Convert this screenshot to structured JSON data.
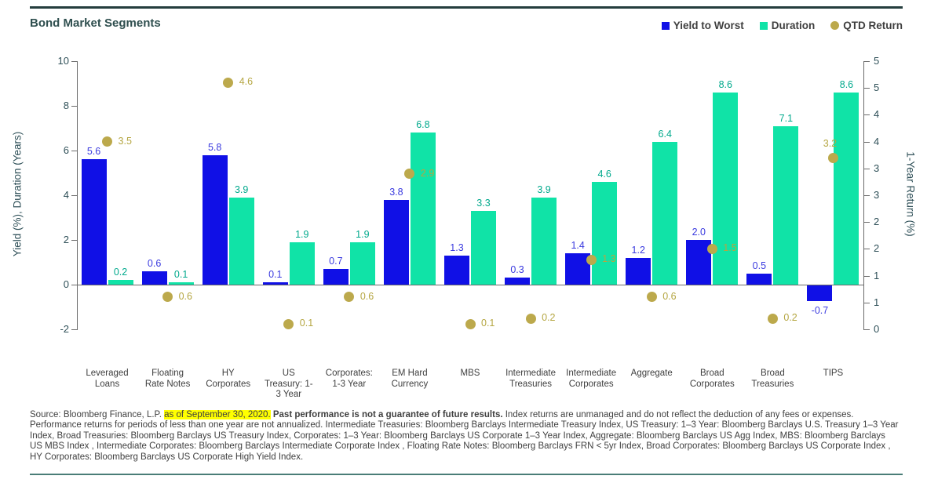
{
  "header": {
    "title": "Bond Market Segments"
  },
  "legend": {
    "items": [
      {
        "label": "Yield to Worst",
        "color": "#1010E6",
        "shape": "square"
      },
      {
        "label": "Duration",
        "color": "#10E3A7",
        "shape": "square"
      },
      {
        "label": "QTD Return",
        "color": "#BCA94C",
        "shape": "circle"
      }
    ]
  },
  "chart_data": {
    "type": "bar",
    "title": "Bond Market Segments",
    "grid": false,
    "legend_position": "top-right",
    "categories": [
      "Leveraged Loans",
      "Floating Rate Notes",
      "HY Corporates",
      "US Treasury: 1-3 Year",
      "Corporates: 1-3 Year",
      "EM Hard Currency",
      "MBS",
      "Intermediate Treasuries",
      "Intermediate Corporates",
      "Aggregate",
      "Broad Corporates",
      "Broad Treasuries",
      "TIPS"
    ],
    "category_label_lines": [
      [
        "Leveraged",
        "Loans"
      ],
      [
        "Floating",
        "Rate Notes"
      ],
      [
        "HY",
        "Corporates"
      ],
      [
        "US",
        "Treasury: 1-",
        "3 Year"
      ],
      [
        "Corporates:",
        "1-3 Year"
      ],
      [
        "EM Hard",
        "Currency"
      ],
      [
        "MBS"
      ],
      [
        "Intermediate",
        "Treasuries"
      ],
      [
        "Intermediate",
        "Corporates"
      ],
      [
        "Aggregate"
      ],
      [
        "Broad",
        "Corporates"
      ],
      [
        "Broad",
        "Treasuries"
      ],
      [
        "TIPS"
      ]
    ],
    "series": [
      {
        "name": "Yield to Worst",
        "type": "bar",
        "axis": "left",
        "color": "#1010E6",
        "label_color": "#3A3ADF",
        "values": [
          5.6,
          0.6,
          5.8,
          0.1,
          0.7,
          3.8,
          1.3,
          0.3,
          1.4,
          1.2,
          2.0,
          0.5,
          -0.7
        ]
      },
      {
        "name": "Duration",
        "type": "bar",
        "axis": "left",
        "color": "#10E3A7",
        "label_color": "#00A98C",
        "values": [
          0.2,
          0.1,
          3.9,
          1.9,
          1.9,
          6.8,
          3.3,
          3.9,
          4.6,
          6.4,
          8.6,
          7.1,
          8.6
        ]
      },
      {
        "name": "QTD Return",
        "type": "scatter",
        "axis": "right",
        "color": "#BCA94C",
        "label_color": "#B5A642",
        "values": [
          3.5,
          0.6,
          4.6,
          0.1,
          0.6,
          2.9,
          0.1,
          0.2,
          1.3,
          0.6,
          1.5,
          0.2,
          3.2
        ],
        "label_positions": [
          "right",
          "right",
          "right",
          "right",
          "right",
          "right",
          "right",
          "right",
          "right",
          "right",
          "right",
          "right",
          "above"
        ]
      }
    ],
    "left_axis": {
      "label": "Yield (%), Duration (Years)",
      "ticks": [
        10,
        8,
        6,
        4,
        2,
        0,
        -2
      ],
      "range": [
        -2,
        10
      ]
    },
    "right_axis": {
      "label": "1-Year Return (%)",
      "tick_labels": [
        "5",
        "5",
        "4",
        "4",
        "3",
        "3",
        "2",
        "2",
        "1",
        "1",
        "0"
      ],
      "tick_step": 0.5,
      "range": [
        0,
        5
      ]
    }
  },
  "footer": {
    "source": "Source: Bloomberg Finance, L.P. ",
    "highlight": "as of September 30, 2020.",
    "bold": " Past performance is not a guarantee of future results.",
    "rest": " Index returns are unmanaged and do not reflect the deduction of any fees or expenses. Performance returns for periods of less than one year are not annualized. Intermediate Treasuries: Bloomberg Barclays Intermediate Treasury Index, US Treasury: 1–3 Year: Bloomberg Barclays U.S. Treasury 1–3 Year Index, Broad Treasuries: Bloomberg Barclays US Treasury Index, Corporates: 1–3 Year: Bloomberg Barclays US Corporate 1–3 Year Index, Aggregate: Bloomberg Barclays US Agg Index, MBS: Bloomberg Barclays US MBS Index , Intermediate Corporates: Bloomberg Barclays Intermediate Corporate Index , Floating Rate Notes: Bloomberg Barclays FRN < 5yr Index, Broad Corporates: Bloomberg Barclays US Corporate Index , HY Corporates: Bloomberg Barclays US Corporate High Yield Index."
  },
  "colors": {
    "rule_top": "#243D3D",
    "rule_bottom": "#4A7D77",
    "title_text": "#2F4F4F",
    "legend_text": "#3F3F3F",
    "axis_text": "#2F5058",
    "axis_line": "#6B6B6B",
    "category_text": "#3F3F3F",
    "footer_text": "#3F3F3F",
    "highlight_bg": "#FFFF00"
  }
}
